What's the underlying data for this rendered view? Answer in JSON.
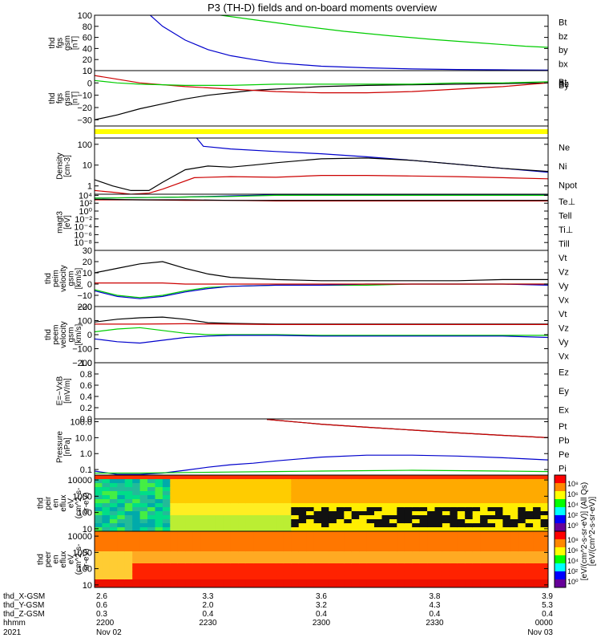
{
  "title": "P3 (TH-D) fields and on-board moments overview",
  "chart_data": [
    {
      "id": "fgs",
      "type": "line",
      "ylabel": [
        "thd",
        "fgs",
        "gsm",
        "[nT]"
      ],
      "ylim": [
        0,
        100
      ],
      "yticks": [
        0,
        20,
        40,
        60,
        80,
        100
      ],
      "tick_labels": [
        "0",
        "20",
        "40",
        "60",
        "80",
        "100"
      ],
      "legend": [
        "Bt",
        "bz",
        "by",
        "bx"
      ],
      "legend_colors": [
        "#000000",
        "#cc0000",
        "#00cc00",
        "#0000cc"
      ],
      "series": [
        {
          "color": "#00cc00",
          "x": [
            0.26,
            0.35,
            0.45,
            0.55,
            0.65,
            0.75,
            0.85,
            0.95,
            1.0
          ],
          "y": [
            102,
            92,
            81,
            71,
            63,
            56,
            50,
            44,
            42
          ]
        },
        {
          "color": "#0000cc",
          "x": [
            0.12,
            0.15,
            0.2,
            0.25,
            0.3,
            0.35,
            0.4,
            0.5,
            0.6,
            0.7,
            0.8,
            0.9,
            1.0
          ],
          "y": [
            102,
            80,
            55,
            38,
            27,
            20,
            14,
            8,
            5,
            3,
            2,
            1.5,
            1
          ]
        }
      ]
    },
    {
      "id": "fgs-zoom",
      "type": "line",
      "ylabel": [
        "thd",
        "fgs",
        "gsm",
        "[nT]"
      ],
      "ylim": [
        -35,
        10
      ],
      "yticks": [
        -30,
        -20,
        -10,
        0,
        10
      ],
      "tick_labels": [
        "−30",
        "−20",
        "−10",
        "0",
        "10"
      ],
      "legend": [
        "Bt",
        "Bz",
        "By"
      ],
      "legend_colors": [
        "#000000",
        "#cc0000",
        "#00cc00"
      ],
      "legend_stacked": true,
      "series": [
        {
          "color": "#000000",
          "x": [
            0,
            0.05,
            0.1,
            0.15,
            0.2,
            0.25,
            0.3,
            0.35,
            0.4,
            0.5,
            0.6,
            0.7,
            0.8,
            0.9,
            1.0
          ],
          "y": [
            -30,
            -26,
            -21,
            -17,
            -13,
            -10,
            -8,
            -6,
            -5,
            -3,
            -2,
            -1.5,
            -1,
            -0.5,
            0
          ]
        },
        {
          "color": "#cc0000",
          "x": [
            0,
            0.05,
            0.1,
            0.2,
            0.3,
            0.4,
            0.5,
            0.6,
            0.7,
            0.8,
            0.9,
            1.0
          ],
          "y": [
            6,
            3,
            0,
            -3,
            -5,
            -7,
            -8,
            -8,
            -7,
            -5,
            -3,
            0
          ]
        },
        {
          "color": "#00cc00",
          "x": [
            0,
            0.05,
            0.1,
            0.2,
            0.3,
            0.4,
            0.5,
            0.6,
            0.7,
            0.8,
            0.9,
            1.0
          ],
          "y": [
            2,
            0,
            -1,
            -2,
            -2,
            -1,
            -1,
            -1,
            -1,
            0,
            0,
            1
          ]
        }
      ]
    },
    {
      "id": "mode-bar",
      "type": "bar",
      "color": "#ffff00"
    },
    {
      "id": "density",
      "type": "line",
      "yscale": "log",
      "ylabel": [
        "Density",
        "[cm-3]"
      ],
      "ylim": [
        0.4,
        200
      ],
      "yticks": [
        1,
        10,
        100
      ],
      "tick_labels": [
        "1",
        "10",
        "100"
      ],
      "legend": [
        "Ne",
        "Ni",
        "Npot"
      ],
      "legend_colors": [
        "#cc0000",
        "#000000",
        "#0000cc"
      ],
      "series": [
        {
          "color": "#0000cc",
          "x": [
            0.225,
            0.24,
            0.3,
            0.4,
            0.5,
            0.6,
            0.7,
            0.8,
            0.9,
            1.0
          ],
          "y": [
            200,
            80,
            60,
            45,
            35,
            25,
            17,
            11,
            7,
            4.5
          ]
        },
        {
          "color": "#000000",
          "x": [
            0,
            0.04,
            0.08,
            0.12,
            0.15,
            0.2,
            0.25,
            0.3,
            0.35,
            0.4,
            0.5,
            0.6,
            0.7,
            0.8,
            0.9,
            1.0
          ],
          "y": [
            2,
            1,
            0.6,
            0.6,
            1.5,
            6,
            9,
            8,
            10,
            13,
            20,
            22,
            17,
            11,
            7,
            5
          ]
        },
        {
          "color": "#cc0000",
          "x": [
            0,
            0.04,
            0.08,
            0.12,
            0.15,
            0.18,
            0.22,
            0.3,
            0.4,
            0.5,
            0.6,
            0.7,
            0.8,
            0.9,
            1.0
          ],
          "y": [
            0.6,
            0.5,
            0.4,
            0.45,
            0.7,
            1.2,
            2.5,
            2.8,
            2.6,
            3.2,
            3.2,
            3.0,
            2.8,
            2.5,
            2.2
          ]
        }
      ]
    },
    {
      "id": "temperature",
      "type": "line",
      "ylabel": [
        "magt3",
        "[eV]"
      ],
      "ylim": [
        0,
        10
      ],
      "yticks": [
        1.4,
        2.8,
        4.2,
        5.6,
        7.0,
        8.4,
        9.8
      ],
      "tick_labels": [
        "10⁻⁸",
        "10⁻⁶",
        "10⁻⁴",
        "10⁻²",
        "10⁰",
        "10²",
        "10⁴"
      ],
      "legend": [
        "Te⊥",
        "Tell",
        "Ti⊥",
        "Till"
      ],
      "legend_colors": [
        "#cc0000",
        "#000000",
        "#0000cc",
        "#00cc00"
      ],
      "series": [
        {
          "color": "#0000cc",
          "x": [
            0,
            0.1,
            0.2,
            0.3,
            0.4,
            0.5,
            0.6,
            0.7,
            0.8,
            0.9,
            1.0
          ],
          "y": [
            9.3,
            9.4,
            9.5,
            9.7,
            9.9,
            9.9,
            9.9,
            9.9,
            9.9,
            9.9,
            9.9
          ]
        },
        {
          "color": "#00cc00",
          "x": [
            0,
            0.1,
            0.2,
            0.3,
            0.4,
            0.5,
            0.6,
            0.7,
            0.8,
            0.9,
            1.0
          ],
          "y": [
            9.3,
            9.4,
            9.5,
            9.6,
            9.8,
            9.8,
            9.8,
            9.8,
            9.8,
            9.8,
            9.8
          ]
        },
        {
          "color": "#cc0000",
          "x": [
            0,
            0.1,
            0.2,
            0.3,
            0.4,
            0.5,
            0.6,
            0.7,
            0.8,
            0.9,
            1.0
          ],
          "y": [
            9.0,
            9.0,
            8.9,
            8.9,
            8.8,
            8.8,
            8.8,
            8.8,
            8.8,
            8.8,
            8.8
          ]
        },
        {
          "color": "#000000",
          "x": [
            0,
            0.1,
            0.2,
            0.3,
            0.4,
            0.5,
            0.6,
            0.7,
            0.8,
            0.9,
            1.0
          ],
          "y": [
            9.1,
            9.0,
            9.0,
            8.9,
            8.9,
            8.9,
            8.9,
            8.9,
            8.9,
            8.9,
            8.9
          ]
        }
      ]
    },
    {
      "id": "peim-velocity",
      "type": "line",
      "ylabel": [
        "thd",
        "peim",
        "velocity",
        "gsm",
        "[km/s]"
      ],
      "ylim": [
        -20,
        30
      ],
      "yticks": [
        -20,
        -10,
        0,
        10,
        20,
        30
      ],
      "tick_labels": [
        "−20",
        "−10",
        "0",
        "10",
        "20",
        "30"
      ],
      "legend": [
        "Vt",
        "Vz",
        "Vy",
        "Vx"
      ],
      "legend_colors": [
        "#000000",
        "#cc0000",
        "#00cc00",
        "#0000cc"
      ],
      "series": [
        {
          "color": "#000000",
          "x": [
            0,
            0.05,
            0.1,
            0.15,
            0.2,
            0.25,
            0.3,
            0.35,
            0.4,
            0.5,
            0.6,
            0.7,
            0.8,
            0.9,
            1.0
          ],
          "y": [
            10,
            14,
            18,
            20,
            14,
            9,
            6,
            5,
            4,
            3,
            3,
            3,
            3,
            4,
            4
          ]
        },
        {
          "color": "#00cc00",
          "x": [
            0,
            0.05,
            0.1,
            0.15,
            0.2,
            0.25,
            0.3,
            0.4,
            0.5,
            0.6,
            0.7,
            0.8,
            0.9,
            1.0
          ],
          "y": [
            -5,
            -10,
            -12,
            -10,
            -6,
            -3,
            -2,
            -1,
            -1,
            -1,
            0,
            0,
            0,
            0
          ]
        },
        {
          "color": "#0000cc",
          "x": [
            0,
            0.05,
            0.1,
            0.15,
            0.2,
            0.25,
            0.3,
            0.4,
            0.5,
            0.6,
            0.7,
            0.8,
            0.9,
            1.0
          ],
          "y": [
            -6,
            -11,
            -13,
            -11,
            -7,
            -4,
            -2,
            -1,
            -1,
            0,
            0,
            0,
            0,
            -1
          ]
        },
        {
          "color": "#cc0000",
          "x": [
            0,
            0.05,
            0.1,
            0.15,
            0.2,
            0.25,
            0.3,
            0.4,
            0.5,
            0.6,
            0.7,
            0.8,
            0.9,
            1.0
          ],
          "y": [
            1,
            1,
            1,
            1,
            0,
            0,
            0,
            0,
            0,
            0,
            0,
            0,
            0,
            0
          ]
        }
      ]
    },
    {
      "id": "peem-velocity",
      "type": "line",
      "ylabel": [
        "thd",
        "peem",
        "velocity",
        "gsm",
        "[km/s]"
      ],
      "ylim": [
        -200,
        200
      ],
      "yticks": [
        -200,
        -100,
        0,
        100,
        200
      ],
      "tick_labels": [
        "−200",
        "−100",
        "0",
        "100",
        "200"
      ],
      "legend": [
        "Vt",
        "Vz",
        "Vy",
        "Vx"
      ],
      "legend_colors": [
        "#000000",
        "#cc0000",
        "#00cc00",
        "#0000cc"
      ],
      "series": [
        {
          "color": "#000000",
          "x": [
            0,
            0.05,
            0.1,
            0.15,
            0.2,
            0.25,
            0.3,
            0.4,
            0.5,
            0.6,
            0.7,
            0.8,
            0.9,
            1.0
          ],
          "y": [
            90,
            110,
            120,
            125,
            110,
            85,
            80,
            75,
            75,
            75,
            75,
            75,
            75,
            75
          ]
        },
        {
          "color": "#cc0000",
          "x": [
            0,
            0.1,
            0.2,
            0.3,
            0.4,
            0.5,
            0.6,
            0.7,
            0.8,
            0.9,
            1.0
          ],
          "y": [
            75,
            75,
            78,
            75,
            72,
            72,
            72,
            72,
            72,
            72,
            72
          ]
        },
        {
          "color": "#00cc00",
          "x": [
            0,
            0.05,
            0.1,
            0.15,
            0.2,
            0.25,
            0.3,
            0.4,
            0.5,
            0.6,
            0.7,
            0.8,
            0.9,
            1.0
          ],
          "y": [
            20,
            40,
            50,
            30,
            10,
            0,
            0,
            0,
            -5,
            -5,
            -5,
            -5,
            -5,
            -5
          ]
        },
        {
          "color": "#0000cc",
          "x": [
            0,
            0.05,
            0.1,
            0.15,
            0.2,
            0.25,
            0.3,
            0.4,
            0.5,
            0.6,
            0.7,
            0.8,
            0.9,
            1.0
          ],
          "y": [
            -30,
            -50,
            -60,
            -40,
            -20,
            -10,
            -5,
            -5,
            -10,
            -10,
            -10,
            -10,
            -10,
            -20
          ]
        }
      ]
    },
    {
      "id": "efield",
      "type": "line",
      "ylabel": [
        "E=−VxB",
        "[mV/m]"
      ],
      "ylim": [
        0,
        1
      ],
      "yticks": [
        0,
        0.2,
        0.4,
        0.6,
        0.8,
        1.0
      ],
      "tick_labels": [
        "0.0",
        "0.2",
        "0.4",
        "0.6",
        "0.8",
        "1.0"
      ],
      "legend": [
        "Ez",
        "Ey",
        "Ex"
      ],
      "legend_colors": [
        "#cc0000",
        "#00cc00",
        "#0000cc"
      ],
      "series": []
    },
    {
      "id": "pressure",
      "type": "line",
      "yscale": "log",
      "ylabel": [
        "Pressure",
        "[nPa]"
      ],
      "ylim": [
        0.045,
        150
      ],
      "yticks": [
        0.1,
        1,
        10,
        100
      ],
      "tick_labels": [
        "0.1",
        "1.0",
        "10.0",
        "100.0"
      ],
      "legend": [
        "Pt",
        "Pb",
        "Pe",
        "Pi"
      ],
      "legend_colors": [
        "#000000",
        "#cc0000",
        "#00cc00",
        "#0000cc"
      ],
      "series": [
        {
          "color": "#000000",
          "x": [
            0.38,
            0.5,
            0.6,
            0.7,
            0.8,
            0.9,
            1.0
          ],
          "y": [
            140,
            70,
            45,
            30,
            20,
            14,
            10
          ]
        },
        {
          "color": "#cc0000",
          "x": [
            0.38,
            0.5,
            0.6,
            0.7,
            0.8,
            0.9,
            1.0
          ],
          "y": [
            140,
            70,
            45,
            30,
            20,
            14,
            10
          ]
        },
        {
          "color": "#0000cc",
          "x": [
            0,
            0.05,
            0.1,
            0.15,
            0.2,
            0.25,
            0.3,
            0.35,
            0.4,
            0.5,
            0.6,
            0.7,
            0.8,
            0.9,
            1.0
          ],
          "y": [
            0.08,
            0.05,
            0.05,
            0.06,
            0.09,
            0.14,
            0.2,
            0.25,
            0.35,
            0.6,
            0.8,
            0.8,
            0.7,
            0.55,
            0.4
          ]
        },
        {
          "color": "#00cc00",
          "x": [
            0,
            0.1,
            0.2,
            0.3,
            0.4,
            0.5,
            0.6,
            0.7,
            0.8,
            0.9,
            1.0
          ],
          "y": [
            0.06,
            0.06,
            0.065,
            0.07,
            0.075,
            0.08,
            0.085,
            0.09,
            0.085,
            0.08,
            0.075
          ]
        }
      ]
    },
    {
      "id": "peir-spectrogram",
      "type": "heatmap",
      "yscale": "log",
      "ylabel": [
        "thd",
        "peir",
        "en",
        "eflux",
        "eV",
        "(cm^2-s-",
        "sr-eV)"
      ],
      "ylim": [
        7,
        20000
      ],
      "yticks": [
        10,
        100,
        1000,
        10000
      ],
      "tick_labels": [
        "10",
        "100",
        "1000",
        "10000"
      ]
    },
    {
      "id": "peer-spectrogram",
      "type": "heatmap",
      "yscale": "log",
      "ylabel": [
        "thd",
        "peer",
        "en",
        "eflux",
        "eV",
        "(cm^2-s-",
        "sr-eV)"
      ],
      "ylim": [
        7,
        20000
      ],
      "yticks": [
        10,
        100,
        1000,
        10000
      ],
      "tick_labels": [
        "10",
        "100",
        "1000",
        "10000"
      ]
    }
  ],
  "colorbar": {
    "label": "[eV/(cm^2-s-sr-eV)] (All Qs)",
    "overlap_label": "[eV/(cm^2-s-sr-eV)]",
    "upper_ticks": [
      "10⁸",
      "10⁶",
      "10⁴",
      "10²",
      "10⁰"
    ],
    "lower_ticks": [
      "10⁸",
      "10⁶",
      "10⁴",
      "10²",
      "10⁰"
    ]
  },
  "x_axis": {
    "row_labels": [
      "thd_X-GSM",
      "thd_Y-GSM",
      "thd_Z-GSM",
      "hhmm",
      "2021"
    ],
    "ticks": [
      {
        "rows": [
          "2.6",
          "0.6",
          "0.3",
          "2200",
          "Nov 02"
        ]
      },
      {
        "rows": [
          "3.3",
          "2.0",
          "0.4",
          "2230",
          ""
        ]
      },
      {
        "rows": [
          "3.6",
          "3.2",
          "0.4",
          "2300",
          ""
        ]
      },
      {
        "rows": [
          "3.8",
          "4.3",
          "0.4",
          "2330",
          ""
        ]
      },
      {
        "rows": [
          "3.9",
          "5.3",
          "0.4",
          "0000",
          "Nov 03"
        ]
      }
    ]
  }
}
